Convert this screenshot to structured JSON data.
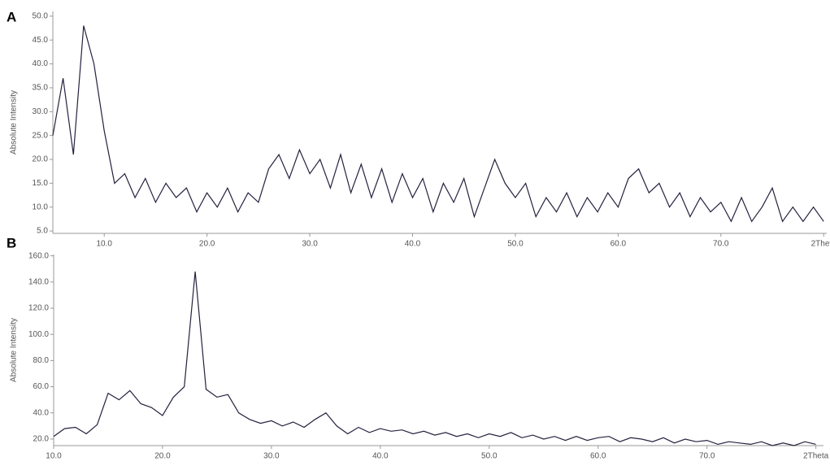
{
  "chart_data": [
    {
      "type": "line",
      "panel": "A",
      "y_label": "Absolute Intensity",
      "color": "#23223f",
      "x": [
        5,
        6,
        7,
        8,
        9,
        10,
        11,
        12,
        13,
        14,
        15,
        16,
        17,
        18,
        19,
        20,
        21,
        22,
        23,
        24,
        25,
        26,
        27,
        28,
        29,
        30,
        31,
        32,
        33,
        34,
        35,
        36,
        37,
        38,
        39,
        40,
        41,
        42,
        43,
        44,
        45,
        46,
        47,
        48,
        49,
        50,
        51,
        52,
        53,
        54,
        55,
        56,
        57,
        58,
        59,
        60,
        61,
        62,
        63,
        64,
        65,
        66,
        67,
        68,
        69,
        70,
        71,
        72,
        73,
        74,
        75,
        76,
        77,
        78,
        79,
        80
      ],
      "values": [
        25,
        37,
        21,
        48,
        40,
        26,
        15,
        17,
        12,
        16,
        11,
        15,
        12,
        14,
        9,
        13,
        10,
        14,
        9,
        13,
        11,
        18,
        21,
        16,
        22,
        17,
        20,
        14,
        21,
        13,
        19,
        12,
        18,
        11,
        17,
        12,
        16,
        9,
        15,
        11,
        16,
        8,
        14,
        20,
        15,
        12,
        15,
        8,
        12,
        9,
        13,
        8,
        12,
        9,
        13,
        10,
        16,
        18,
        13,
        15,
        10,
        13,
        8,
        12,
        9,
        11,
        7,
        12,
        7,
        10,
        14,
        7,
        10,
        7,
        10,
        7
      ],
      "xlim": [
        5,
        80.3
      ],
      "ylim": [
        4.5,
        51
      ],
      "xticks": [
        {
          "value": 10,
          "label": "10.0"
        },
        {
          "value": 20,
          "label": "20.0"
        },
        {
          "value": 30,
          "label": "30.0"
        },
        {
          "value": 40,
          "label": "40.0"
        },
        {
          "value": 50,
          "label": "50.0"
        },
        {
          "value": 60,
          "label": "60.0"
        },
        {
          "value": 70,
          "label": "70.0"
        },
        {
          "value": 80,
          "label": "2Theta"
        }
      ],
      "yticks": [
        {
          "value": 5,
          "label": "5.0"
        },
        {
          "value": 10,
          "label": "10.0"
        },
        {
          "value": 15,
          "label": "15.0"
        },
        {
          "value": 20,
          "label": "20.0"
        },
        {
          "value": 25,
          "label": "25.0"
        },
        {
          "value": 30,
          "label": "30.0"
        },
        {
          "value": 35,
          "label": "35.0"
        },
        {
          "value": 40,
          "label": "40.0"
        },
        {
          "value": 45,
          "label": "45.0"
        },
        {
          "value": 50,
          "label": "50.0"
        }
      ]
    },
    {
      "type": "line",
      "panel": "B",
      "y_label": "Absolute Intensity",
      "color": "#23223f",
      "x": [
        10,
        11,
        12,
        13,
        14,
        15,
        16,
        17,
        18,
        19,
        20,
        21,
        22,
        23,
        24,
        25,
        26,
        27,
        28,
        29,
        30,
        31,
        32,
        33,
        34,
        35,
        36,
        37,
        38,
        39,
        40,
        41,
        42,
        43,
        44,
        45,
        46,
        47,
        48,
        49,
        50,
        51,
        52,
        53,
        54,
        55,
        56,
        57,
        58,
        59,
        60,
        61,
        62,
        63,
        64,
        65,
        66,
        67,
        68,
        69,
        70,
        71,
        72,
        73,
        74,
        75,
        76,
        77,
        78,
        79,
        80
      ],
      "values": [
        22,
        28,
        29,
        24,
        31,
        55,
        50,
        57,
        47,
        44,
        38,
        52,
        60,
        148,
        58,
        52,
        54,
        40,
        35,
        32,
        34,
        30,
        33,
        29,
        35,
        40,
        30,
        24,
        29,
        25,
        28,
        26,
        27,
        24,
        26,
        23,
        25,
        22,
        24,
        21,
        24,
        22,
        25,
        21,
        23,
        20,
        22,
        19,
        22,
        19,
        21,
        22,
        18,
        21,
        20,
        18,
        21,
        17,
        20,
        18,
        19,
        16,
        18,
        17,
        16,
        18,
        15,
        17,
        15,
        18,
        16
      ],
      "xlim": [
        10,
        80.7
      ],
      "ylim": [
        15,
        161
      ],
      "xticks": [
        {
          "value": 10,
          "label": "10.0"
        },
        {
          "value": 20,
          "label": "20.0"
        },
        {
          "value": 30,
          "label": "30.0"
        },
        {
          "value": 40,
          "label": "40.0"
        },
        {
          "value": 50,
          "label": "50.0"
        },
        {
          "value": 60,
          "label": "60.0"
        },
        {
          "value": 70,
          "label": "70.0"
        },
        {
          "value": 80,
          "label": "2Theta"
        }
      ],
      "yticks": [
        {
          "value": 20,
          "label": "20.0"
        },
        {
          "value": 40,
          "label": "40.0"
        },
        {
          "value": 60,
          "label": "60.0"
        },
        {
          "value": 80,
          "label": "80.0"
        },
        {
          "value": 100,
          "label": "100.0"
        },
        {
          "value": 120,
          "label": "120.0"
        },
        {
          "value": 140,
          "label": "140.0"
        },
        {
          "value": 160,
          "label": "160.0"
        }
      ]
    }
  ]
}
